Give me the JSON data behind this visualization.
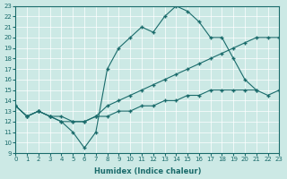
{
  "xlabel": "Humidex (Indice chaleur)",
  "background_color": "#cce9e5",
  "line_color": "#1a6b6b",
  "grid_color": "#ffffff",
  "xlim": [
    0,
    23
  ],
  "ylim": [
    9,
    23
  ],
  "xticks": [
    0,
    1,
    2,
    3,
    4,
    5,
    6,
    7,
    8,
    9,
    10,
    11,
    12,
    13,
    14,
    15,
    16,
    17,
    18,
    19,
    20,
    21,
    22,
    23
  ],
  "yticks": [
    9,
    10,
    11,
    12,
    13,
    14,
    15,
    16,
    17,
    18,
    19,
    20,
    21,
    22,
    23
  ],
  "line_max_x": [
    0,
    1,
    2,
    3,
    4,
    5,
    6,
    7,
    8,
    9,
    10,
    11,
    12,
    13,
    14,
    15,
    16,
    17,
    18,
    19,
    20,
    21
  ],
  "line_max_y": [
    13.5,
    12.5,
    13.0,
    12.5,
    12.0,
    11.0,
    9.5,
    11.0,
    17.0,
    19.0,
    20.0,
    21.0,
    20.5,
    22.0,
    23.0,
    22.5,
    21.5,
    20.0,
    20.0,
    18.0,
    16.0,
    15.0
  ],
  "line_mean_x": [
    0,
    1,
    2,
    3,
    4,
    5,
    6,
    7,
    8,
    9,
    10,
    11,
    12,
    13,
    14,
    15,
    16,
    17,
    18,
    19,
    20,
    21,
    22,
    23
  ],
  "line_mean_y": [
    13.5,
    12.5,
    13.0,
    12.5,
    12.5,
    12.0,
    12.0,
    12.5,
    13.5,
    14.0,
    14.5,
    15.0,
    15.5,
    16.0,
    16.5,
    17.0,
    17.5,
    18.0,
    18.5,
    19.0,
    19.5,
    20.0,
    20.0,
    20.0
  ],
  "line_min_x": [
    0,
    1,
    2,
    3,
    4,
    5,
    6,
    7,
    8,
    9,
    10,
    11,
    12,
    13,
    14,
    15,
    16,
    17,
    18,
    19,
    20,
    21,
    22,
    23
  ],
  "line_min_y": [
    13.5,
    12.5,
    13.0,
    12.5,
    12.0,
    12.0,
    12.0,
    12.5,
    12.5,
    13.0,
    13.0,
    13.5,
    13.5,
    14.0,
    14.0,
    14.5,
    14.5,
    15.0,
    15.0,
    15.0,
    15.0,
    15.0,
    14.5,
    15.0
  ]
}
